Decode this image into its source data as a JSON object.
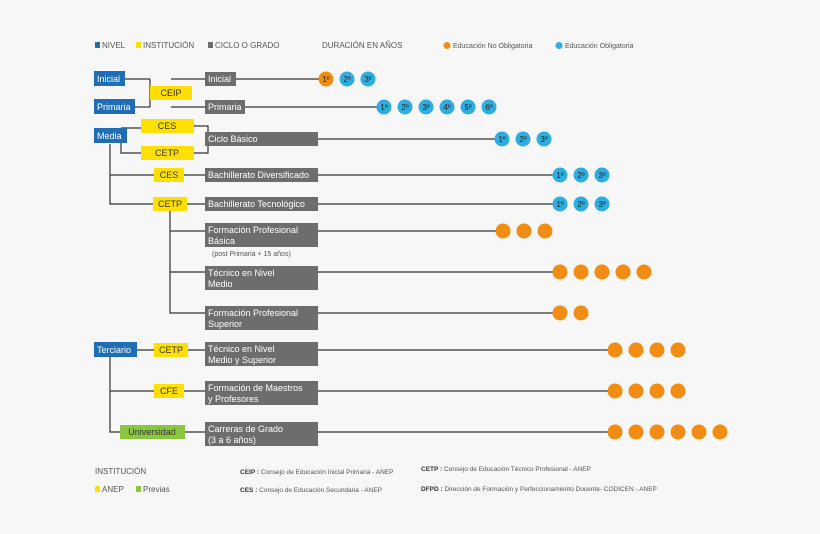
{
  "legend": {
    "nivel": "NIVEL",
    "institucion": "INSTITUCIÓN",
    "ciclo": "CICLO O GRADO",
    "duracion": "DURACIÓN EN AÑOS",
    "no_obligatoria": "Educación No Obligatoria",
    "obligatoria": "Educación Obligatoria"
  },
  "colors": {
    "nivel": "#1f6db5",
    "institucion": "#ffe000",
    "ciclo": "#6d6d6d",
    "no_obligatoria": "#f28c13",
    "obligatoria": "#2eaee0",
    "previas": "#8cc63f"
  },
  "levels": [
    "Inicial",
    "Primaria",
    "Media",
    "Terciario"
  ],
  "institutions": [
    "CEIP",
    "CES",
    "CETP",
    "CES",
    "CETP",
    "CETP",
    "CFE",
    "Universidad"
  ],
  "programs": [
    {
      "label": [
        "Inicial"
      ],
      "years": [
        "1º",
        "2º",
        "3º"
      ],
      "types": [
        "no",
        "ob",
        "ob"
      ]
    },
    {
      "label": [
        "Primaria"
      ],
      "years": [
        "1º",
        "2º",
        "3º",
        "4º",
        "5º",
        "6º"
      ],
      "types": [
        "ob",
        "ob",
        "ob",
        "ob",
        "ob",
        "ob"
      ]
    },
    {
      "label": [
        "Ciclo Básico"
      ],
      "years": [
        "1º",
        "2º",
        "3º"
      ],
      "types": [
        "ob",
        "ob",
        "ob"
      ]
    },
    {
      "label": [
        "Bachillerato Diversificado"
      ],
      "years": [
        "1º",
        "2º",
        "3º"
      ],
      "types": [
        "ob",
        "ob",
        "ob"
      ]
    },
    {
      "label": [
        "Bachillerato Tecnológico"
      ],
      "years": [
        "1º",
        "2º",
        "3º"
      ],
      "types": [
        "ob",
        "ob",
        "ob"
      ]
    },
    {
      "label": [
        "Formación Profesional",
        "Básica"
      ],
      "note": "(post Primaria + 15 años)",
      "years": [
        "",
        "",
        ""
      ],
      "types": [
        "no",
        "no",
        "no"
      ]
    },
    {
      "label": [
        "Técnico en Nivel",
        "Medio"
      ],
      "years": [
        "",
        "",
        "",
        "",
        ""
      ],
      "types": [
        "no",
        "no",
        "no",
        "no",
        "no"
      ]
    },
    {
      "label": [
        "Formación Profesional",
        "Superior"
      ],
      "years": [
        "",
        ""
      ],
      "types": [
        "no",
        "no"
      ]
    },
    {
      "label": [
        "Técnico en Nivel",
        "Medio y Superior"
      ],
      "years": [
        "",
        "",
        "",
        ""
      ],
      "types": [
        "no",
        "no",
        "no",
        "no"
      ]
    },
    {
      "label": [
        "Formación de Maestros",
        "y Profesores"
      ],
      "years": [
        "",
        "",
        "",
        ""
      ],
      "types": [
        "no",
        "no",
        "no",
        "no"
      ]
    },
    {
      "label": [
        "Carreras de Grado",
        "(3 a 6 años)"
      ],
      "years": [
        "",
        "",
        "",
        "",
        "",
        ""
      ],
      "types": [
        "no",
        "no",
        "no",
        "no",
        "no",
        "no"
      ]
    }
  ],
  "footer": {
    "title": "INSTITUCIÓN",
    "anep": "ANEP",
    "previas": "Previas",
    "notes": [
      {
        "abbr": "CEIP :",
        "text": "Consejo de Educación Inicial Primaria - ANEP"
      },
      {
        "abbr": "CETP :",
        "text": "Consejo de Educación Técnico Profesional - ANEP"
      },
      {
        "abbr": "CES :",
        "text": "Consejo de Educación Secundaria - ANEP"
      },
      {
        "abbr": "DFPD :",
        "text": "Dirección de Formación y Perfeccionamiento Docente- CODICEN - ANEP"
      }
    ]
  }
}
